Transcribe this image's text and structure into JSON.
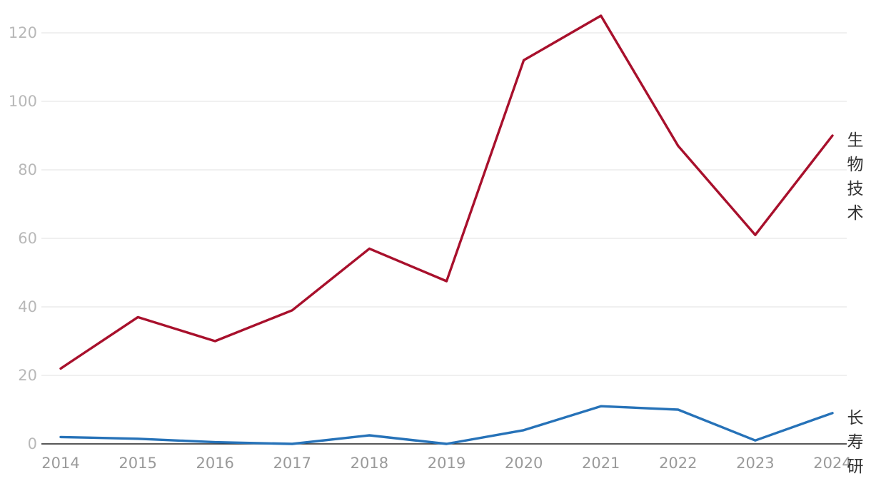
{
  "chart_data": {
    "type": "line",
    "x": [
      "2014",
      "2015",
      "2016",
      "2017",
      "2018",
      "2019",
      "2020",
      "2021",
      "2022",
      "2023",
      "2024"
    ],
    "ylim": [
      0,
      125
    ],
    "yticks": [
      0,
      20,
      40,
      60,
      80,
      100,
      120
    ],
    "grid": true,
    "legend": "direct labels at right end of lines",
    "series": [
      {
        "name": "生物技术",
        "color": "#a8102c",
        "values": [
          22,
          37,
          30,
          39,
          57,
          47.5,
          112,
          125,
          87,
          61,
          90
        ]
      },
      {
        "name": "长寿研",
        "color": "#2672b8",
        "values": [
          2,
          1.5,
          0.5,
          0,
          2.5,
          0,
          4,
          11,
          10,
          1,
          9
        ]
      }
    ]
  }
}
